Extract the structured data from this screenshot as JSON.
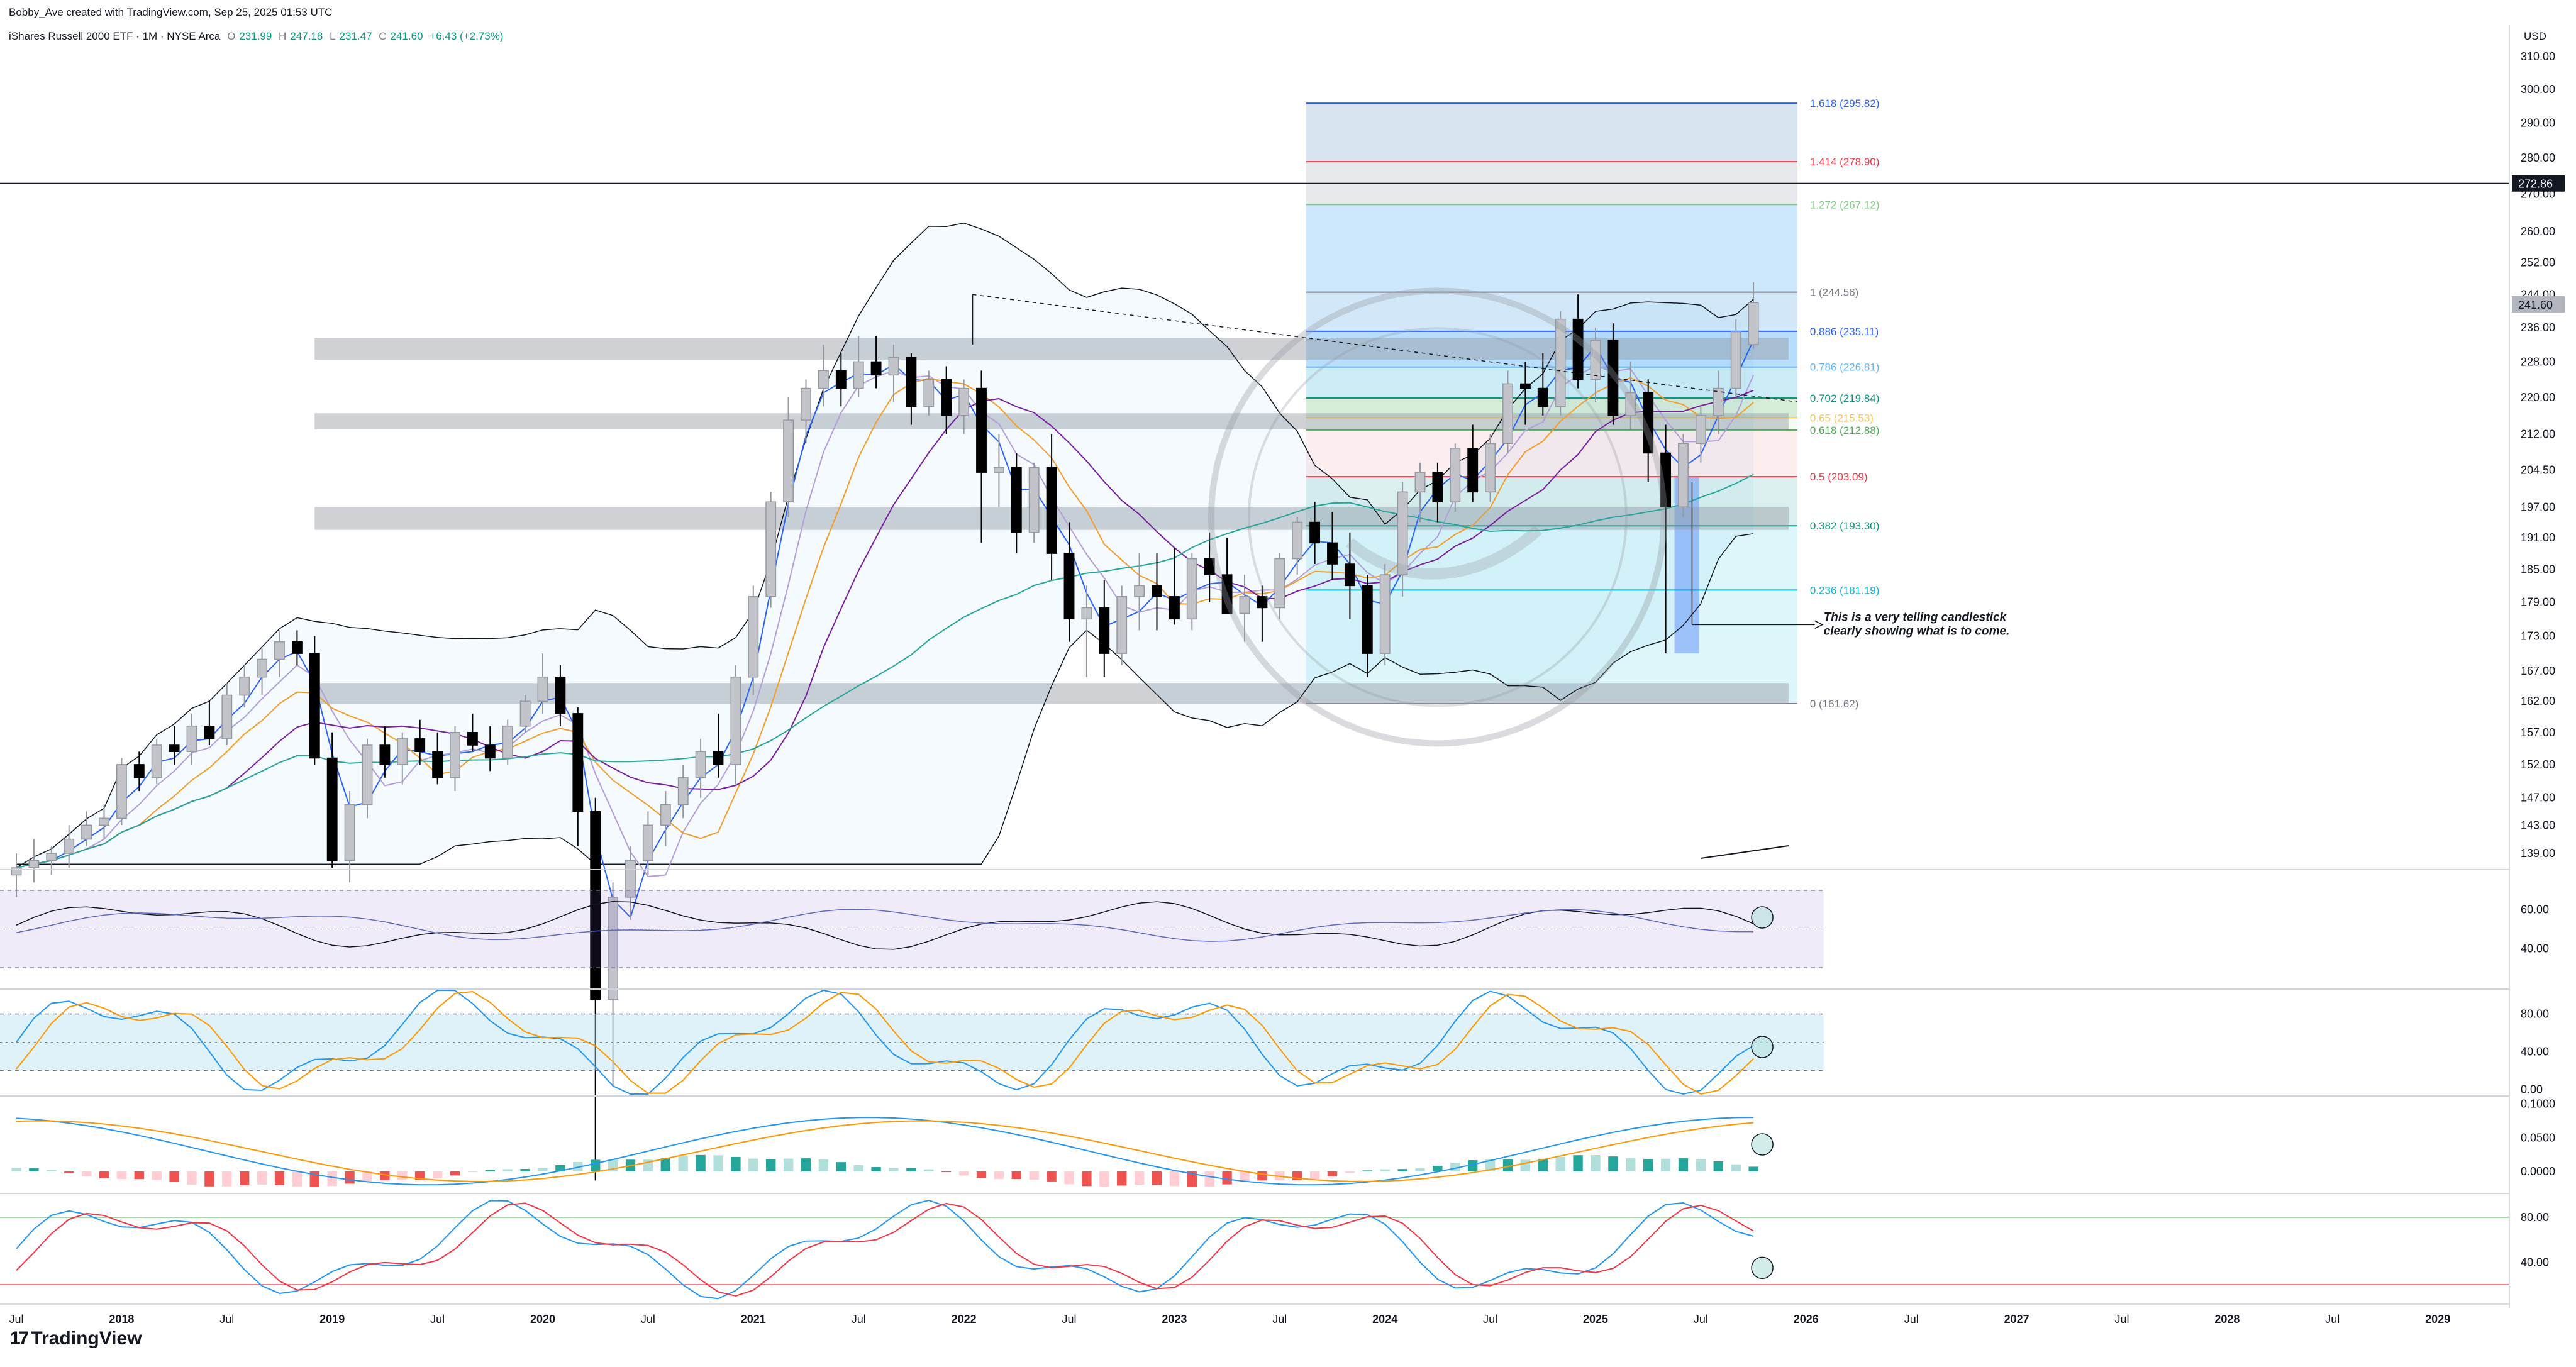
{
  "header": {
    "credit": "Bobby_Ave created with TradingView.com, Sep 25, 2025 01:53 UTC",
    "symbol": "iShares Russell 2000 ETF · 1M · NYSE Arca",
    "open_label": "O",
    "open": "231.99",
    "high_label": "H",
    "high": "247.18",
    "low_label": "L",
    "low": "231.47",
    "close_label": "C",
    "close": "241.60",
    "change": "+6.43 (+2.73%)",
    "currency": "USD"
  },
  "brand": {
    "logo": "17",
    "name": "TradingView"
  },
  "colors": {
    "up": "#c2c4ca",
    "down": "#000000",
    "fib_blue": "#2962ff",
    "grey_zone": "#9598a1",
    "rsi_bg": "#7e57c2",
    "stoch_bg": "#b2dfef",
    "hist_up": "#26a69a",
    "hist_up_light": "#b2dfdb",
    "hist_down": "#ef5350",
    "hist_down_light": "#ffcdd2"
  },
  "chart_data": [
    {
      "type": "candlestick",
      "axis": {
        "ylim": [
          137,
          312
        ],
        "ticks": [
          139,
          143,
          147,
          152,
          157,
          162,
          167,
          173,
          179,
          185,
          191,
          197,
          204.5,
          212,
          220,
          228,
          236,
          244,
          252,
          260,
          270,
          280,
          290,
          300,
          310
        ],
        "tick_labels": [
          "139.00",
          "143.00",
          "147.00",
          "152.00",
          "157.00",
          "162.00",
          "167.00",
          "173.00",
          "179.00",
          "185.00",
          "191.00",
          "197.00",
          "204.50",
          "212.00",
          "220.00",
          "228.00",
          "236.00",
          "244.00",
          "252.00",
          "260.00",
          "270.00",
          "280.00",
          "290.00",
          "300.00",
          "310.00"
        ],
        "x_labels": [
          {
            "t": 0,
            "label": "Jul"
          },
          {
            "t": 6,
            "label": "2018",
            "bold": true
          },
          {
            "t": 12,
            "label": "Jul"
          },
          {
            "t": 18,
            "label": "2019",
            "bold": true
          },
          {
            "t": 24,
            "label": "Jul"
          },
          {
            "t": 30,
            "label": "2020",
            "bold": true
          },
          {
            "t": 36,
            "label": "Jul"
          },
          {
            "t": 42,
            "label": "2021",
            "bold": true
          },
          {
            "t": 48,
            "label": "Jul"
          },
          {
            "t": 54,
            "label": "2022",
            "bold": true
          },
          {
            "t": 60,
            "label": "Jul"
          },
          {
            "t": 66,
            "label": "2023",
            "bold": true
          },
          {
            "t": 72,
            "label": "Jul"
          },
          {
            "t": 78,
            "label": "2024",
            "bold": true
          },
          {
            "t": 84,
            "label": "Jul"
          },
          {
            "t": 90,
            "label": "2025",
            "bold": true
          },
          {
            "t": 96,
            "label": "Jul"
          },
          {
            "t": 102,
            "label": "2026",
            "bold": true
          },
          {
            "t": 108,
            "label": "Jul"
          },
          {
            "t": 114,
            "label": "2027",
            "bold": true
          },
          {
            "t": 120,
            "label": "Jul"
          },
          {
            "t": 126,
            "label": "2028",
            "bold": true
          },
          {
            "t": 132,
            "label": "Jul"
          },
          {
            "t": 138,
            "label": "2029",
            "bold": true
          }
        ],
        "last_price": "241.60",
        "level_line": "272.86"
      },
      "ohlc": [
        [
          136,
          139,
          133,
          137
        ],
        [
          137,
          141,
          135,
          138
        ],
        [
          138,
          140,
          136,
          139
        ],
        [
          139,
          143,
          137,
          141
        ],
        [
          141,
          145,
          140,
          143
        ],
        [
          143,
          146,
          141,
          144
        ],
        [
          144,
          153,
          143,
          152
        ],
        [
          152,
          154,
          148,
          150
        ],
        [
          150,
          156,
          149,
          155
        ],
        [
          155,
          158,
          152,
          154
        ],
        [
          154,
          160,
          152,
          158
        ],
        [
          158,
          162,
          155,
          156
        ],
        [
          156,
          165,
          155,
          163
        ],
        [
          163,
          168,
          161,
          166
        ],
        [
          166,
          171,
          163,
          169
        ],
        [
          169,
          174,
          166,
          172
        ],
        [
          172,
          174,
          168,
          170
        ],
        [
          170,
          173,
          152,
          153
        ],
        [
          153,
          157,
          137,
          138
        ],
        [
          138,
          148,
          135,
          146
        ],
        [
          146,
          156,
          144,
          155
        ],
        [
          155,
          158,
          150,
          152
        ],
        [
          152,
          157,
          149,
          156
        ],
        [
          156,
          159,
          152,
          154
        ],
        [
          154,
          157,
          149,
          150
        ],
        [
          150,
          158,
          148,
          157
        ],
        [
          157,
          160,
          154,
          155
        ],
        [
          155,
          158,
          151,
          153
        ],
        [
          153,
          159,
          152,
          158
        ],
        [
          158,
          163,
          157,
          162
        ],
        [
          162,
          170,
          160,
          166
        ],
        [
          166,
          168,
          158,
          160
        ],
        [
          160,
          161,
          140,
          145
        ],
        [
          145,
          147,
          100,
          120
        ],
        [
          120,
          135,
          110,
          133
        ],
        [
          133,
          140,
          130,
          138
        ],
        [
          138,
          145,
          136,
          143
        ],
        [
          143,
          148,
          140,
          146
        ],
        [
          146,
          152,
          144,
          150
        ],
        [
          150,
          156,
          147,
          154
        ],
        [
          154,
          160,
          150,
          152
        ],
        [
          152,
          168,
          149,
          166
        ],
        [
          166,
          182,
          163,
          180
        ],
        [
          180,
          200,
          178,
          198
        ],
        [
          198,
          220,
          195,
          215
        ],
        [
          215,
          224,
          210,
          222
        ],
        [
          222,
          232,
          218,
          226
        ],
        [
          226,
          230,
          218,
          222
        ],
        [
          222,
          234,
          220,
          228
        ],
        [
          228,
          234,
          222,
          225
        ],
        [
          225,
          232,
          219,
          229
        ],
        [
          229,
          230,
          214,
          218
        ],
        [
          218,
          226,
          216,
          224
        ],
        [
          224,
          227,
          212,
          216
        ],
        [
          216,
          224,
          212,
          222
        ],
        [
          222,
          226,
          190,
          204
        ],
        [
          204,
          212,
          197,
          205
        ],
        [
          205,
          208,
          188,
          192
        ],
        [
          192,
          206,
          190,
          205
        ],
        [
          205,
          212,
          183,
          188
        ],
        [
          188,
          194,
          172,
          176
        ],
        [
          176,
          182,
          166,
          178
        ],
        [
          178,
          183,
          166,
          170
        ],
        [
          170,
          182,
          168,
          180
        ],
        [
          180,
          188,
          174,
          182
        ],
        [
          182,
          188,
          174,
          180
        ],
        [
          180,
          189,
          175,
          176
        ],
        [
          176,
          188,
          174,
          187
        ],
        [
          187,
          192,
          179,
          184
        ],
        [
          184,
          191,
          178,
          177
        ],
        [
          177,
          184,
          172,
          180
        ],
        [
          180,
          182,
          172,
          178
        ],
        [
          178,
          188,
          176,
          187
        ],
        [
          187,
          195,
          184,
          194
        ],
        [
          194,
          198,
          186,
          190
        ],
        [
          190,
          196,
          183,
          186
        ],
        [
          186,
          192,
          176,
          182
        ],
        [
          182,
          184,
          166,
          170
        ],
        [
          170,
          186,
          168,
          184
        ],
        [
          184,
          202,
          180,
          200
        ],
        [
          200,
          206,
          194,
          204
        ],
        [
          204,
          206,
          194,
          198
        ],
        [
          198,
          210,
          196,
          209
        ],
        [
          209,
          214,
          198,
          200
        ],
        [
          200,
          212,
          198,
          210
        ],
        [
          210,
          226,
          208,
          223
        ],
        [
          223,
          228,
          214,
          222
        ],
        [
          222,
          230,
          216,
          218
        ],
        [
          218,
          240,
          216,
          238
        ],
        [
          238,
          244,
          222,
          224
        ],
        [
          224,
          236,
          219,
          233
        ],
        [
          233,
          237,
          214,
          216
        ],
        [
          216,
          228,
          213,
          221
        ],
        [
          221,
          224,
          202,
          208
        ],
        [
          208,
          214,
          170,
          197
        ],
        [
          197,
          212,
          195,
          210
        ],
        [
          210,
          218,
          206,
          216
        ],
        [
          216,
          226,
          212,
          222
        ],
        [
          222,
          238,
          220,
          235
        ],
        [
          232,
          247,
          231,
          242
        ]
      ],
      "fib_levels": [
        {
          "ratio": 1.618,
          "price": 295.82,
          "label": "1.618 (295.82)",
          "color": "#2962ff"
        },
        {
          "ratio": 1.414,
          "price": 278.9,
          "label": "1.414 (278.90)",
          "color": "#f23645"
        },
        {
          "ratio": 1.272,
          "price": 267.12,
          "label": "1.272 (267.12)",
          "color": "#81c784"
        },
        {
          "ratio": 1,
          "price": 244.56,
          "label": "1 (244.56)",
          "color": "#787b86"
        },
        {
          "ratio": 0.886,
          "price": 235.11,
          "label": "0.886 (235.11)",
          "color": "#2962ff"
        },
        {
          "ratio": 0.786,
          "price": 226.81,
          "label": "0.786 (226.81)",
          "color": "#64b5f6"
        },
        {
          "ratio": 0.702,
          "price": 219.84,
          "label": "0.702 (219.84)",
          "color": "#089981"
        },
        {
          "ratio": 0.65,
          "price": 215.53,
          "label": "0.65 (215.53)",
          "color": "#f7c747"
        },
        {
          "ratio": 0.618,
          "price": 212.88,
          "label": "0.618 (212.88)",
          "color": "#4caf50"
        },
        {
          "ratio": 0.5,
          "price": 203.09,
          "label": "0.5 (203.09)",
          "color": "#f23645"
        },
        {
          "ratio": 0.382,
          "price": 193.3,
          "label": "0.382 (193.30)",
          "color": "#089981"
        },
        {
          "ratio": 0.236,
          "price": 181.19,
          "label": "0.236 (181.19)",
          "color": "#00bcd4"
        },
        {
          "ratio": 0,
          "price": 161.62,
          "label": "0 (161.62)",
          "color": "#787b86"
        }
      ],
      "grey_zones": [
        [
          228.5,
          233.6
        ],
        [
          213.0,
          216.5
        ],
        [
          192.5,
          197.0
        ],
        [
          161.6,
          165.0
        ]
      ],
      "annotation": {
        "line1": "This is a very telling candlestick",
        "line2": "clearly showing what is to come."
      }
    },
    {
      "type": "line",
      "name": "",
      "axis": {
        "ticks": [
          40,
          60
        ],
        "tick_labels": [
          "40.00",
          "60.00"
        ],
        "ylim": [
          20,
          80
        ],
        "band": [
          30,
          70
        ]
      }
    },
    {
      "type": "line",
      "name": "",
      "axis": {
        "ticks": [
          0,
          40,
          80
        ],
        "tick_labels": [
          "0.00",
          "40.00",
          "80.00"
        ],
        "ylim": [
          -5,
          105
        ],
        "band": [
          20,
          80
        ]
      }
    },
    {
      "type": "bar",
      "name": "",
      "axis": {
        "ticks": [
          0,
          0.05,
          0.1
        ],
        "tick_labels": [
          "0.0000",
          "0.0500",
          "0.1000"
        ],
        "ylim": [
          -0.03,
          0.11
        ]
      }
    },
    {
      "type": "line",
      "name": "",
      "axis": {
        "ticks": [
          40,
          80
        ],
        "tick_labels": [
          "40.00",
          "80.00"
        ],
        "ylim": [
          5,
          100
        ],
        "levels": [
          20,
          80
        ]
      }
    }
  ]
}
